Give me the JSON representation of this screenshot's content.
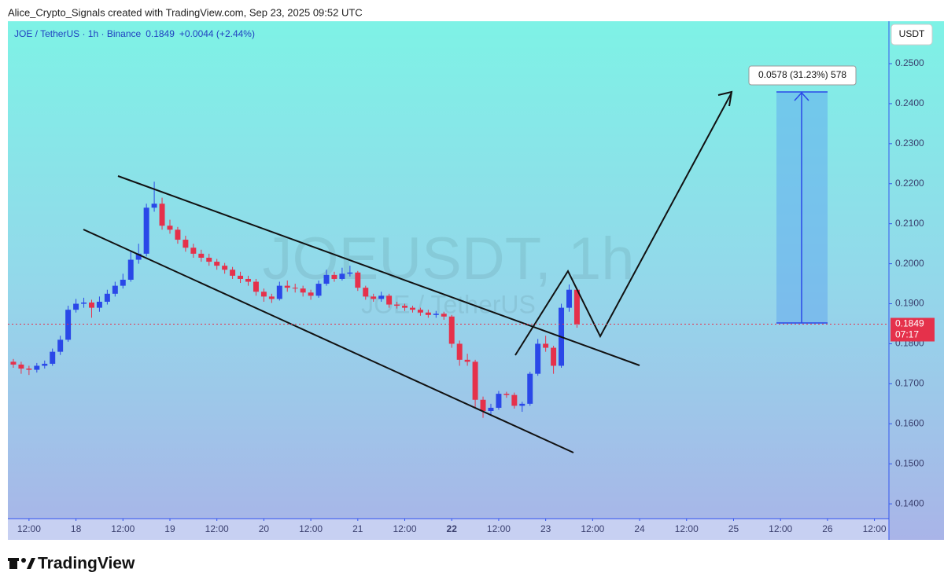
{
  "header": {
    "credit": "Alice_Crypto_Signals created with TradingView.com, Sep 23, 2025 09:52 UTC"
  },
  "footer": {
    "logo": "TradingView"
  },
  "chart_data": {
    "type": "candlestick",
    "title": "JOE / TetherUS · 1h · Binance",
    "legend_price": "0.1849",
    "legend_change": "+0.0044 (+2.44%)",
    "currency": "USDT",
    "watermark": "JOEUSDT, 1h",
    "watermark_sub": "JOE / TetherUS",
    "projection_label": "0.0578 (31.23%) 578",
    "last_price_label": "0.1849",
    "countdown": "07:17",
    "up_color": "#2a48e8",
    "down_color": "#e5314b",
    "xlim": [
      6.6,
      231.7
    ],
    "ylim": [
      0.1363,
      0.2606
    ],
    "xticks": [
      {
        "value": 12,
        "label": "12:00"
      },
      {
        "value": 24,
        "label": "18"
      },
      {
        "value": 36,
        "label": "12:00"
      },
      {
        "value": 48,
        "label": "19"
      },
      {
        "value": 60,
        "label": "12:00"
      },
      {
        "value": 72,
        "label": "20"
      },
      {
        "value": 84,
        "label": "12:00"
      },
      {
        "value": 96,
        "label": "21"
      },
      {
        "value": 108,
        "label": "12:00"
      },
      {
        "value": 120,
        "label": "22",
        "bold": true
      },
      {
        "value": 132,
        "label": "12:00"
      },
      {
        "value": 144,
        "label": "23"
      },
      {
        "value": 156,
        "label": "12:00"
      },
      {
        "value": 168,
        "label": "24"
      },
      {
        "value": 180,
        "label": "12:00"
      },
      {
        "value": 192,
        "label": "25"
      },
      {
        "value": 204,
        "label": "12:00"
      },
      {
        "value": 216,
        "label": "26"
      },
      {
        "value": 228,
        "label": "12:00"
      }
    ],
    "yticks": [
      {
        "value": 0.14,
        "label": "0.1400"
      },
      {
        "value": 0.15,
        "label": "0.1500"
      },
      {
        "value": 0.16,
        "label": "0.1600"
      },
      {
        "value": 0.17,
        "label": "0.1700"
      },
      {
        "value": 0.18,
        "label": "0.1800"
      },
      {
        "value": 0.19,
        "label": "0.1900"
      },
      {
        "value": 0.2,
        "label": "0.2000"
      },
      {
        "value": 0.21,
        "label": "0.2100"
      },
      {
        "value": 0.22,
        "label": "0.2200"
      },
      {
        "value": 0.23,
        "label": "0.2300"
      },
      {
        "value": 0.24,
        "label": "0.2400"
      },
      {
        "value": 0.25,
        "label": "0.2500"
      }
    ],
    "x": [
      8,
      10,
      12,
      14,
      16,
      18,
      20,
      22,
      24,
      26,
      28,
      30,
      32,
      34,
      36,
      38,
      40,
      42,
      44,
      46,
      48,
      50,
      52,
      54,
      56,
      58,
      60,
      62,
      64,
      66,
      68,
      70,
      72,
      74,
      76,
      78,
      80,
      82,
      84,
      86,
      88,
      90,
      92,
      94,
      96,
      98,
      100,
      102,
      104,
      106,
      108,
      110,
      112,
      114,
      116,
      118,
      120,
      122,
      124,
      126,
      128,
      130,
      132,
      134,
      136,
      138,
      140,
      142,
      144,
      146,
      148,
      150,
      152
    ],
    "open": [
      0.1755,
      0.1748,
      0.1738,
      0.1735,
      0.1745,
      0.175,
      0.178,
      0.181,
      0.1885,
      0.19,
      0.1903,
      0.189,
      0.1905,
      0.1925,
      0.1945,
      0.196,
      0.201,
      0.2025,
      0.214,
      0.215,
      0.2095,
      0.2085,
      0.206,
      0.204,
      0.2025,
      0.2015,
      0.2005,
      0.1995,
      0.1985,
      0.197,
      0.1962,
      0.1955,
      0.193,
      0.1918,
      0.1912,
      0.1945,
      0.194,
      0.1938,
      0.1928,
      0.192,
      0.195,
      0.1972,
      0.1962,
      0.1975,
      0.1978,
      0.194,
      0.1918,
      0.1912,
      0.192,
      0.1898,
      0.1895,
      0.189,
      0.1885,
      0.1878,
      0.1872,
      0.1875,
      0.1868,
      0.18,
      0.176,
      0.1755,
      0.166,
      0.1632,
      0.164,
      0.1675,
      0.1672,
      0.1645,
      0.165,
      0.1725,
      0.18,
      0.179,
      0.1745,
      0.189,
      0.1935
    ],
    "high": [
      0.1762,
      0.1755,
      0.1745,
      0.1752,
      0.1758,
      0.1788,
      0.182,
      0.1895,
      0.1912,
      0.1915,
      0.191,
      0.1918,
      0.1935,
      0.1955,
      0.1975,
      0.203,
      0.205,
      0.215,
      0.2205,
      0.2165,
      0.211,
      0.2092,
      0.207,
      0.205,
      0.2035,
      0.2025,
      0.2012,
      0.2002,
      0.1992,
      0.198,
      0.197,
      0.1962,
      0.1938,
      0.1925,
      0.1955,
      0.1958,
      0.195,
      0.1945,
      0.1935,
      0.1958,
      0.1985,
      0.198,
      0.199,
      0.1995,
      0.1982,
      0.1945,
      0.1925,
      0.193,
      0.1925,
      0.1905,
      0.19,
      0.1895,
      0.189,
      0.1885,
      0.1882,
      0.188,
      0.1872,
      0.1808,
      0.1775,
      0.176,
      0.1668,
      0.165,
      0.1682,
      0.168,
      0.1678,
      0.1655,
      0.173,
      0.1812,
      0.182,
      0.1795,
      0.19,
      0.1948,
      0.194
    ],
    "low": [
      0.174,
      0.1725,
      0.1722,
      0.1728,
      0.1738,
      0.1745,
      0.1772,
      0.1805,
      0.1878,
      0.189,
      0.1865,
      0.188,
      0.1898,
      0.1918,
      0.1938,
      0.1955,
      0.2,
      0.2018,
      0.213,
      0.2085,
      0.2075,
      0.205,
      0.203,
      0.2015,
      0.2005,
      0.1995,
      0.1985,
      0.1975,
      0.1962,
      0.1952,
      0.1945,
      0.192,
      0.1905,
      0.1902,
      0.1908,
      0.193,
      0.1928,
      0.1918,
      0.191,
      0.1915,
      0.1945,
      0.1955,
      0.1958,
      0.1968,
      0.1932,
      0.191,
      0.1905,
      0.1905,
      0.189,
      0.1888,
      0.1882,
      0.1878,
      0.187,
      0.1865,
      0.1865,
      0.186,
      0.179,
      0.1745,
      0.1745,
      0.164,
      0.1615,
      0.162,
      0.1635,
      0.1665,
      0.1638,
      0.163,
      0.1645,
      0.172,
      0.178,
      0.1725,
      0.174,
      0.188,
      0.184
    ],
    "close": [
      0.1748,
      0.1738,
      0.1735,
      0.1745,
      0.175,
      0.178,
      0.181,
      0.1885,
      0.19,
      0.1903,
      0.189,
      0.1905,
      0.1925,
      0.1945,
      0.196,
      0.201,
      0.2025,
      0.214,
      0.215,
      0.2095,
      0.2085,
      0.206,
      0.204,
      0.2025,
      0.2015,
      0.2005,
      0.1995,
      0.1985,
      0.197,
      0.1962,
      0.1955,
      0.193,
      0.1918,
      0.1912,
      0.1945,
      0.194,
      0.1938,
      0.1928,
      0.192,
      0.195,
      0.1972,
      0.1962,
      0.1975,
      0.1978,
      0.194,
      0.1918,
      0.1912,
      0.192,
      0.1898,
      0.1895,
      0.189,
      0.1885,
      0.1878,
      0.1872,
      0.1875,
      0.1868,
      0.18,
      0.176,
      0.1755,
      0.166,
      0.1632,
      0.164,
      0.1675,
      0.1672,
      0.1645,
      0.165,
      0.1725,
      0.18,
      0.179,
      0.1745,
      0.189,
      0.1935,
      0.1849
    ]
  }
}
